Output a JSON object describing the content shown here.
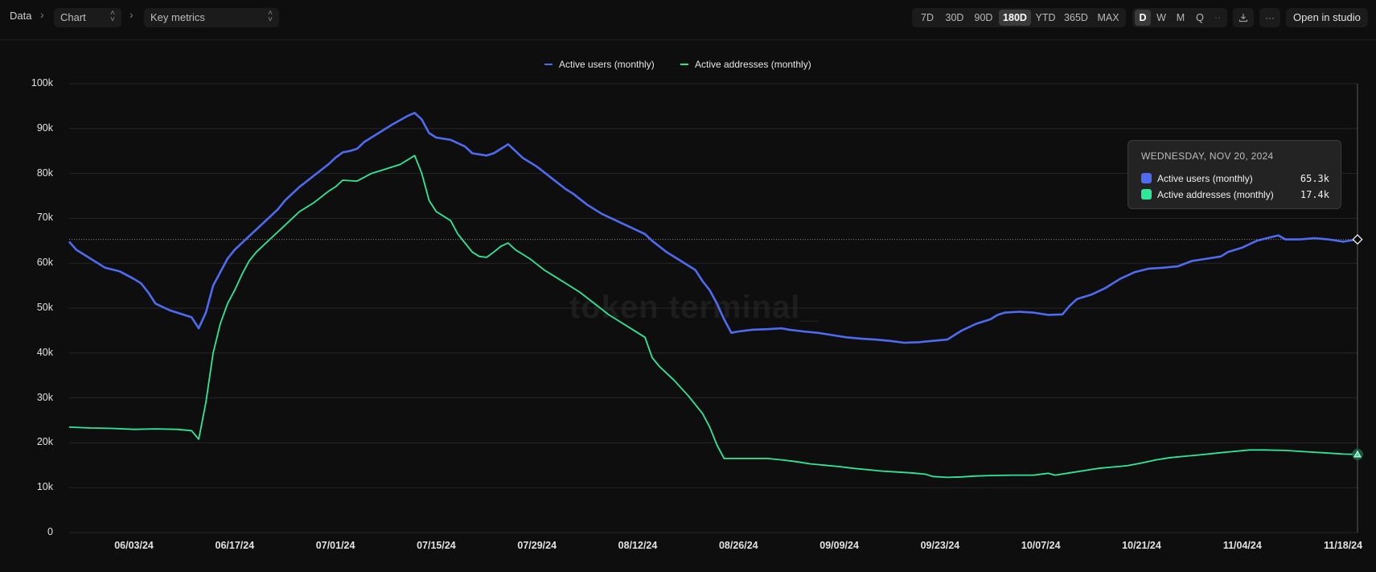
{
  "breadcrumb": {
    "root": "Data",
    "chart_select": "Chart",
    "metric_select": "Key metrics"
  },
  "toolbar": {
    "ranges": [
      "7D",
      "30D",
      "90D",
      "180D",
      "YTD",
      "365D",
      "MAX"
    ],
    "active_range": "180D",
    "granularity": [
      "D",
      "W",
      "M",
      "Q",
      "··"
    ],
    "active_granularity": "D",
    "open_studio": "Open in studio"
  },
  "watermark": "token terminal_",
  "tooltip": {
    "date": "WEDNESDAY, NOV 20, 2024",
    "rows": [
      {
        "label": "Active users (monthly)",
        "value": "65.3k"
      },
      {
        "label": "Active addresses (monthly)",
        "value": "17.4k"
      }
    ]
  },
  "colors": {
    "users": "#4f6bf0",
    "addresses": "#2ee89a",
    "grid": "#262626",
    "background": "#0e0e0e"
  },
  "chart_data": {
    "type": "line",
    "title": "",
    "xlabel": "",
    "ylabel": "",
    "ylim": [
      0,
      100000
    ],
    "yticks": [
      0,
      10000,
      20000,
      30000,
      40000,
      50000,
      60000,
      70000,
      80000,
      90000,
      100000
    ],
    "ytick_labels": [
      "0",
      "10k",
      "20k",
      "30k",
      "40k",
      "50k",
      "60k",
      "70k",
      "80k",
      "90k",
      "100k"
    ],
    "x_range": [
      "2024-05-25",
      "2024-11-20"
    ],
    "xtick_labels": [
      "06/03/24",
      "06/17/24",
      "07/01/24",
      "07/15/24",
      "07/29/24",
      "08/12/24",
      "08/26/24",
      "09/09/24",
      "09/23/24",
      "10/07/24",
      "10/21/24",
      "11/04/24",
      "11/18/24"
    ],
    "grid": true,
    "legend": "top-center",
    "series": [
      {
        "name": "Active users (monthly)",
        "points": [
          [
            "2024-05-25",
            64800
          ],
          [
            "2024-05-26",
            63000
          ],
          [
            "2024-05-28",
            61000
          ],
          [
            "2024-05-30",
            59000
          ],
          [
            "2024-06-01",
            58200
          ],
          [
            "2024-06-03",
            56500
          ],
          [
            "2024-06-04",
            55500
          ],
          [
            "2024-06-05",
            53500
          ],
          [
            "2024-06-06",
            51000
          ],
          [
            "2024-06-08",
            49500
          ],
          [
            "2024-06-09",
            49000
          ],
          [
            "2024-06-11",
            48000
          ],
          [
            "2024-06-12",
            45500
          ],
          [
            "2024-06-13",
            49000
          ],
          [
            "2024-06-14",
            55000
          ],
          [
            "2024-06-15",
            58000
          ],
          [
            "2024-06-16",
            61000
          ],
          [
            "2024-06-17",
            63000
          ],
          [
            "2024-06-19",
            66000
          ],
          [
            "2024-06-21",
            69000
          ],
          [
            "2024-06-23",
            72000
          ],
          [
            "2024-06-24",
            74000
          ],
          [
            "2024-06-26",
            77000
          ],
          [
            "2024-06-28",
            79500
          ],
          [
            "2024-06-30",
            82000
          ],
          [
            "2024-07-01",
            83500
          ],
          [
            "2024-07-02",
            84700
          ],
          [
            "2024-07-03",
            85000
          ],
          [
            "2024-07-04",
            85500
          ],
          [
            "2024-07-05",
            87000
          ],
          [
            "2024-07-07",
            89000
          ],
          [
            "2024-07-09",
            91000
          ],
          [
            "2024-07-11",
            92800
          ],
          [
            "2024-07-12",
            93500
          ],
          [
            "2024-07-13",
            92000
          ],
          [
            "2024-07-14",
            89000
          ],
          [
            "2024-07-15",
            88000
          ],
          [
            "2024-07-17",
            87500
          ],
          [
            "2024-07-19",
            86000
          ],
          [
            "2024-07-20",
            84500
          ],
          [
            "2024-07-22",
            84000
          ],
          [
            "2024-07-23",
            84500
          ],
          [
            "2024-07-24",
            85500
          ],
          [
            "2024-07-25",
            86500
          ],
          [
            "2024-07-26",
            85000
          ],
          [
            "2024-07-27",
            83500
          ],
          [
            "2024-07-29",
            81500
          ],
          [
            "2024-07-31",
            79000
          ],
          [
            "2024-08-02",
            76500
          ],
          [
            "2024-08-03",
            75500
          ],
          [
            "2024-08-05",
            73000
          ],
          [
            "2024-08-07",
            71000
          ],
          [
            "2024-08-09",
            69500
          ],
          [
            "2024-08-11",
            68000
          ],
          [
            "2024-08-13",
            66500
          ],
          [
            "2024-08-14",
            65000
          ],
          [
            "2024-08-16",
            62500
          ],
          [
            "2024-08-18",
            60500
          ],
          [
            "2024-08-20",
            58500
          ],
          [
            "2024-08-21",
            56000
          ],
          [
            "2024-08-22",
            54000
          ],
          [
            "2024-08-23",
            51000
          ],
          [
            "2024-08-24",
            47500
          ],
          [
            "2024-08-25",
            44500
          ],
          [
            "2024-08-26",
            44800
          ],
          [
            "2024-08-28",
            45200
          ],
          [
            "2024-08-30",
            45300
          ],
          [
            "2024-09-01",
            45500
          ],
          [
            "2024-09-02",
            45200
          ],
          [
            "2024-09-04",
            44800
          ],
          [
            "2024-09-06",
            44500
          ],
          [
            "2024-09-08",
            44000
          ],
          [
            "2024-09-10",
            43500
          ],
          [
            "2024-09-12",
            43200
          ],
          [
            "2024-09-14",
            43000
          ],
          [
            "2024-09-16",
            42700
          ],
          [
            "2024-09-18",
            42300
          ],
          [
            "2024-09-20",
            42400
          ],
          [
            "2024-09-22",
            42700
          ],
          [
            "2024-09-24",
            43000
          ],
          [
            "2024-09-26",
            45000
          ],
          [
            "2024-09-28",
            46500
          ],
          [
            "2024-09-30",
            47500
          ],
          [
            "2024-10-01",
            48500
          ],
          [
            "2024-10-02",
            49000
          ],
          [
            "2024-10-04",
            49200
          ],
          [
            "2024-10-06",
            49000
          ],
          [
            "2024-10-08",
            48500
          ],
          [
            "2024-10-10",
            48600
          ],
          [
            "2024-10-11",
            50500
          ],
          [
            "2024-10-12",
            52000
          ],
          [
            "2024-10-14",
            53000
          ],
          [
            "2024-10-16",
            54500
          ],
          [
            "2024-10-18",
            56500
          ],
          [
            "2024-10-20",
            58000
          ],
          [
            "2024-10-22",
            58800
          ],
          [
            "2024-10-24",
            59000
          ],
          [
            "2024-10-26",
            59300
          ],
          [
            "2024-10-28",
            60500
          ],
          [
            "2024-10-30",
            61000
          ],
          [
            "2024-11-01",
            61500
          ],
          [
            "2024-11-02",
            62500
          ],
          [
            "2024-11-04",
            63500
          ],
          [
            "2024-11-06",
            65000
          ],
          [
            "2024-11-08",
            65800
          ],
          [
            "2024-11-09",
            66200
          ],
          [
            "2024-11-10",
            65300
          ],
          [
            "2024-11-12",
            65300
          ],
          [
            "2024-11-14",
            65600
          ],
          [
            "2024-11-16",
            65300
          ],
          [
            "2024-11-18",
            64800
          ],
          [
            "2024-11-20",
            65300
          ]
        ]
      },
      {
        "name": "Active addresses (monthly)",
        "points": [
          [
            "2024-05-25",
            23500
          ],
          [
            "2024-05-28",
            23300
          ],
          [
            "2024-05-31",
            23200
          ],
          [
            "2024-06-03",
            23000
          ],
          [
            "2024-06-06",
            23100
          ],
          [
            "2024-06-09",
            23000
          ],
          [
            "2024-06-11",
            22700
          ],
          [
            "2024-06-12",
            20800
          ],
          [
            "2024-06-13",
            29000
          ],
          [
            "2024-06-14",
            40000
          ],
          [
            "2024-06-15",
            46500
          ],
          [
            "2024-06-16",
            51000
          ],
          [
            "2024-06-17",
            54000
          ],
          [
            "2024-06-18",
            57500
          ],
          [
            "2024-06-19",
            60500
          ],
          [
            "2024-06-20",
            62500
          ],
          [
            "2024-06-22",
            65500
          ],
          [
            "2024-06-24",
            68500
          ],
          [
            "2024-06-26",
            71500
          ],
          [
            "2024-06-28",
            73500
          ],
          [
            "2024-06-30",
            76000
          ],
          [
            "2024-07-01",
            77000
          ],
          [
            "2024-07-02",
            78500
          ],
          [
            "2024-07-04",
            78300
          ],
          [
            "2024-07-06",
            80000
          ],
          [
            "2024-07-08",
            81000
          ],
          [
            "2024-07-10",
            82000
          ],
          [
            "2024-07-11",
            83000
          ],
          [
            "2024-07-12",
            84000
          ],
          [
            "2024-07-13",
            80000
          ],
          [
            "2024-07-14",
            74000
          ],
          [
            "2024-07-15",
            71500
          ],
          [
            "2024-07-17",
            69500
          ],
          [
            "2024-07-18",
            66500
          ],
          [
            "2024-07-20",
            62500
          ],
          [
            "2024-07-21",
            61500
          ],
          [
            "2024-07-22",
            61300
          ],
          [
            "2024-07-23",
            62500
          ],
          [
            "2024-07-24",
            63800
          ],
          [
            "2024-07-25",
            64500
          ],
          [
            "2024-07-26",
            63000
          ],
          [
            "2024-07-28",
            61000
          ],
          [
            "2024-07-30",
            58500
          ],
          [
            "2024-08-01",
            56500
          ],
          [
            "2024-08-02",
            55500
          ],
          [
            "2024-08-04",
            53500
          ],
          [
            "2024-08-06",
            51000
          ],
          [
            "2024-08-08",
            48500
          ],
          [
            "2024-08-10",
            46500
          ],
          [
            "2024-08-12",
            44500
          ],
          [
            "2024-08-13",
            43500
          ],
          [
            "2024-08-14",
            39000
          ],
          [
            "2024-08-15",
            37000
          ],
          [
            "2024-08-17",
            34000
          ],
          [
            "2024-08-19",
            30500
          ],
          [
            "2024-08-21",
            26500
          ],
          [
            "2024-08-22",
            23500
          ],
          [
            "2024-08-23",
            19500
          ],
          [
            "2024-08-24",
            16500
          ],
          [
            "2024-08-26",
            16500
          ],
          [
            "2024-08-28",
            16500
          ],
          [
            "2024-08-30",
            16500
          ],
          [
            "2024-09-01",
            16200
          ],
          [
            "2024-09-03",
            15800
          ],
          [
            "2024-09-05",
            15300
          ],
          [
            "2024-09-07",
            15000
          ],
          [
            "2024-09-09",
            14700
          ],
          [
            "2024-09-11",
            14300
          ],
          [
            "2024-09-13",
            14000
          ],
          [
            "2024-09-15",
            13700
          ],
          [
            "2024-09-17",
            13500
          ],
          [
            "2024-09-19",
            13300
          ],
          [
            "2024-09-21",
            13000
          ],
          [
            "2024-09-22",
            12500
          ],
          [
            "2024-09-24",
            12300
          ],
          [
            "2024-09-26",
            12400
          ],
          [
            "2024-09-28",
            12600
          ],
          [
            "2024-09-30",
            12700
          ],
          [
            "2024-10-03",
            12800
          ],
          [
            "2024-10-06",
            12800
          ],
          [
            "2024-10-08",
            13200
          ],
          [
            "2024-10-09",
            12800
          ],
          [
            "2024-10-11",
            13300
          ],
          [
            "2024-10-13",
            13800
          ],
          [
            "2024-10-15",
            14300
          ],
          [
            "2024-10-17",
            14600
          ],
          [
            "2024-10-19",
            14900
          ],
          [
            "2024-10-21",
            15500
          ],
          [
            "2024-10-23",
            16200
          ],
          [
            "2024-10-25",
            16700
          ],
          [
            "2024-10-27",
            17000
          ],
          [
            "2024-10-29",
            17300
          ],
          [
            "2024-11-01",
            17800
          ],
          [
            "2024-11-03",
            18100
          ],
          [
            "2024-11-05",
            18400
          ],
          [
            "2024-11-07",
            18400
          ],
          [
            "2024-11-10",
            18300
          ],
          [
            "2024-11-13",
            18000
          ],
          [
            "2024-11-16",
            17700
          ],
          [
            "2024-11-18",
            17500
          ],
          [
            "2024-11-20",
            17400
          ]
        ]
      }
    ]
  }
}
